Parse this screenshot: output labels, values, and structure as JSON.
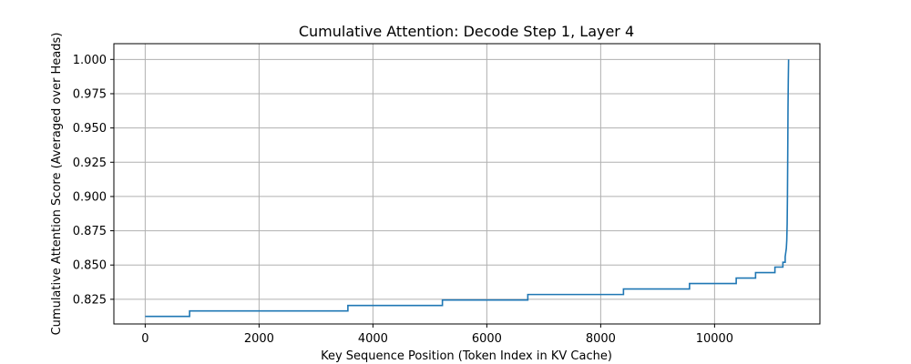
{
  "chart_data": {
    "type": "line",
    "title": "Cumulative Attention: Decode Step 1, Layer 4",
    "xlabel": "Key Sequence Position (Token Index in KV Cache)",
    "ylabel": "Cumulative Attention Score (Averaged over Heads)",
    "xlim": [
      -550,
      11850
    ],
    "ylim": [
      0.807,
      1.0115
    ],
    "grid": true,
    "xticks": [
      0,
      2000,
      4000,
      6000,
      8000,
      10000
    ],
    "xtick_labels": [
      "0",
      "2000",
      "4000",
      "6000",
      "8000",
      "10000"
    ],
    "yticks": [
      0.825,
      0.85,
      0.875,
      0.9,
      0.925,
      0.95,
      0.975,
      1.0
    ],
    "ytick_labels": [
      "0.825",
      "0.850",
      "0.875",
      "0.900",
      "0.925",
      "0.950",
      "0.975",
      "1.000"
    ],
    "series": [
      {
        "name": "cumulative attention",
        "color": "#1f77b4",
        "x": [
          0,
          780,
          780,
          3560,
          3560,
          5220,
          5220,
          6720,
          6720,
          8400,
          8400,
          9560,
          9560,
          10380,
          10380,
          10720,
          10720,
          11060,
          11060,
          11200,
          11200,
          11240,
          11240,
          11260,
          11268,
          11275,
          11280,
          11285,
          11290,
          11295,
          11300
        ],
        "y": [
          0.8125,
          0.8125,
          0.8165,
          0.8165,
          0.8205,
          0.8205,
          0.8245,
          0.8245,
          0.8285,
          0.8285,
          0.8325,
          0.8325,
          0.8365,
          0.8365,
          0.8405,
          0.8405,
          0.8445,
          0.8445,
          0.8485,
          0.8485,
          0.852,
          0.852,
          0.856,
          0.862,
          0.868,
          0.88,
          0.9,
          0.93,
          0.965,
          0.985,
          1.0
        ]
      }
    ]
  }
}
